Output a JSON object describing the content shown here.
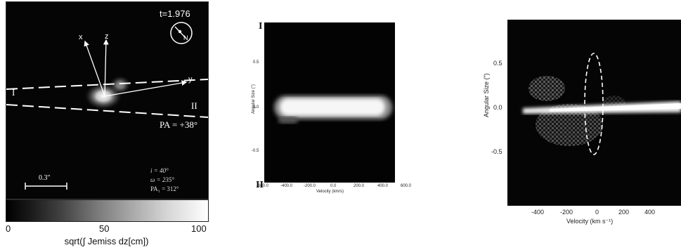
{
  "panel_a": {
    "time_label": "t=1.976",
    "compass_label": "N",
    "axis_x_label": "x",
    "axis_z_label": "z",
    "axis_y_label": "y",
    "slit_left_label": "I",
    "slit_right_label": "II",
    "pa_label": "PA = +38°",
    "scale_label": "0.3\"",
    "param_i": "i = 40°",
    "param_omega": "ω = 235°",
    "param_pa": "PA₁ = 312°"
  },
  "colorbar": {
    "ticks": [
      "0",
      "50",
      "100"
    ],
    "label": "sqrt(∫ Jemiss dz[cm])"
  },
  "panel_b": {
    "label_top": "I",
    "label_bottom": "II",
    "ylabel": "Angular Size (\")",
    "xlabel": "Velocity (km/s)",
    "y_ticks": [
      "0.5",
      "0.0",
      "-0.5"
    ],
    "x_ticks": [
      "-600.0",
      "-400.0",
      "-200.0",
      "0.0",
      "200.0",
      "400.0",
      "600.0"
    ]
  },
  "panel_c": {
    "ylabel": "Angular Size (\")",
    "xlabel": "Velocity (km s⁻¹)",
    "y_ticks": [
      "0.5",
      "0.0",
      "-0.5"
    ],
    "x_ticks": [
      "-400",
      "-200",
      "0",
      "200",
      "400"
    ]
  }
}
